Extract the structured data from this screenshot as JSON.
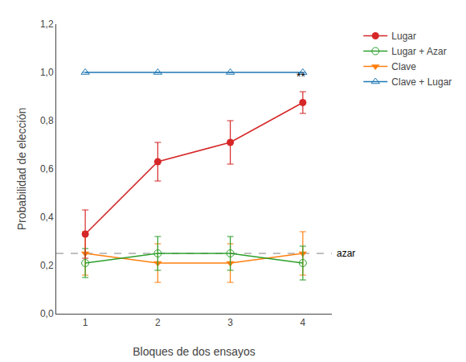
{
  "chart_data": {
    "type": "line",
    "x": [
      1,
      2,
      3,
      4
    ],
    "series": [
      {
        "name": "Lugar",
        "values": [
          0.33,
          0.63,
          0.71,
          0.875
        ],
        "errors": [
          0.1,
          0.08,
          0.09,
          0.045
        ],
        "marker": "circle"
      },
      {
        "name": "Lugar + Azar",
        "values": [
          0.21,
          0.25,
          0.25,
          0.21
        ],
        "errors": [
          0.06,
          0.07,
          0.07,
          0.07
        ],
        "marker": "circle-open"
      },
      {
        "name": "Clave",
        "values": [
          0.25,
          0.21,
          0.21,
          0.25
        ],
        "errors": [
          0.09,
          0.08,
          0.08,
          0.09
        ],
        "marker": "triangle-down"
      },
      {
        "name": "Clave + Lugar",
        "values": [
          1.0,
          1.0,
          1.0,
          1.0
        ],
        "errors": [
          0.0,
          0.0,
          0.0,
          0.0
        ],
        "marker": "triangle-up-open"
      }
    ],
    "reference_line": {
      "y": 0.25,
      "label": "azar",
      "line_style": "dashed"
    },
    "annotations": [
      {
        "text": "**",
        "x": 3.97,
        "y": 0.95
      }
    ],
    "xlabel": "Bloques de dos ensayos",
    "ylabel": "Probabilidad de elección",
    "xlim": [
      0.6,
      4.4
    ],
    "xticks": [
      1,
      2,
      3,
      4
    ],
    "ylim": [
      0.0,
      1.2
    ],
    "yticks": [
      {
        "value": 0.0,
        "label": "0,0"
      },
      {
        "value": 0.2,
        "label": "0,2"
      },
      {
        "value": 0.4,
        "label": "0,4"
      },
      {
        "value": 0.6,
        "label": "0,6"
      },
      {
        "value": 0.8,
        "label": "0,8"
      },
      {
        "value": 1.0,
        "label": "1,0"
      },
      {
        "value": 1.2,
        "label": "1,2"
      }
    ],
    "grid": false,
    "legend": "right"
  }
}
